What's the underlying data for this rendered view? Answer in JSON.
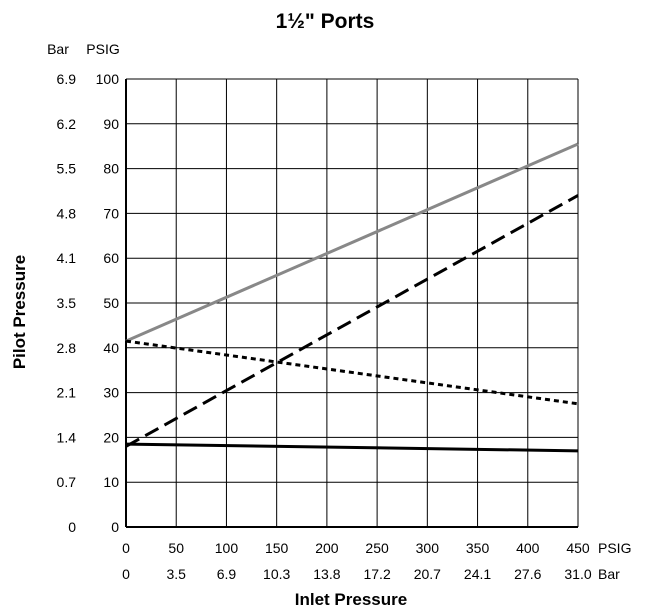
{
  "chart_data": {
    "type": "line",
    "title": "1½\" Ports",
    "xlabel": "Inlet Pressure",
    "ylabel": "Pilot Pressure",
    "x_unit_primary": "PSIG",
    "x_unit_secondary": "Bar",
    "y_unit_primary": "PSIG",
    "y_unit_secondary": "Bar",
    "xlim": [
      0,
      450
    ],
    "ylim": [
      0,
      100
    ],
    "grid": true,
    "x_ticks_psig": [
      "0",
      "50",
      "100",
      "150",
      "200",
      "250",
      "300",
      "350",
      "400",
      "450"
    ],
    "x_ticks_bar": [
      "0",
      "3.5",
      "6.9",
      "10.3",
      "13.8",
      "17.2",
      "20.7",
      "24.1",
      "27.6",
      "31.0"
    ],
    "y_ticks_psig": [
      "0",
      "10",
      "20",
      "30",
      "40",
      "50",
      "60",
      "70",
      "80",
      "90",
      "100"
    ],
    "y_ticks_bar": [
      "0",
      "0.7",
      "1.4",
      "2.1",
      "2.8",
      "3.5",
      "4.1",
      "4.8",
      "5.5",
      "6.2",
      "6.9"
    ],
    "series": [
      {
        "style": "solid",
        "color": "#888888",
        "x": [
          0,
          450
        ],
        "y": [
          41.5,
          85.5
        ]
      },
      {
        "style": "dashed",
        "color": "#000000",
        "x": [
          0,
          450
        ],
        "y": [
          18,
          74
        ]
      },
      {
        "style": "dotted",
        "color": "#000000",
        "x": [
          0,
          450
        ],
        "y": [
          41.5,
          27.5
        ]
      },
      {
        "style": "solid",
        "color": "#000000",
        "x": [
          0,
          450
        ],
        "y": [
          18.5,
          17
        ]
      }
    ]
  }
}
